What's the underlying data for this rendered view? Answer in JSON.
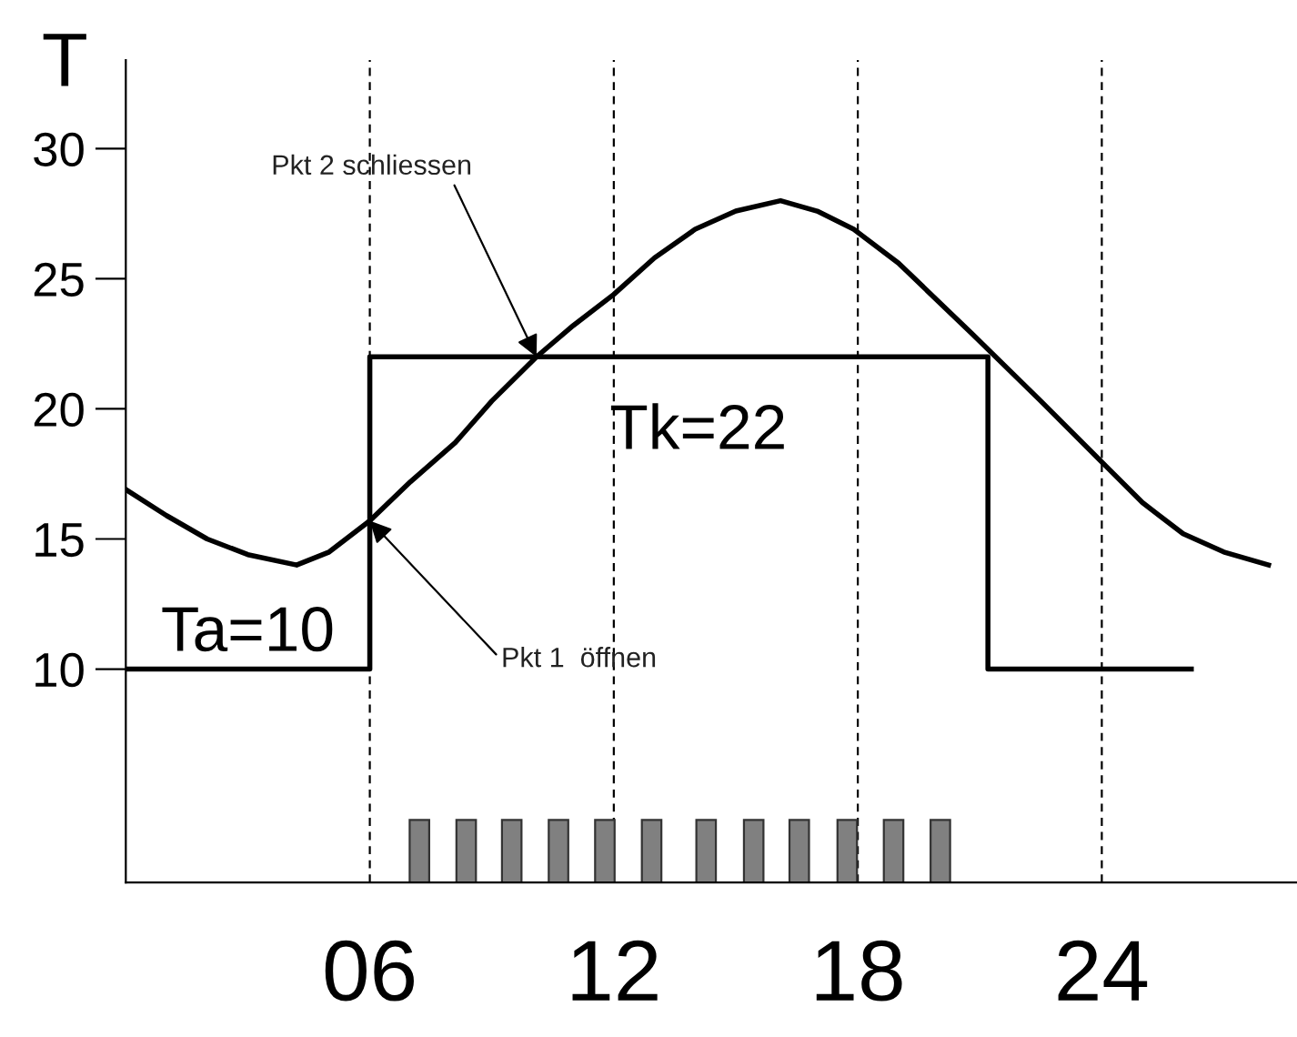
{
  "chart_data": {
    "type": "line",
    "ylabel": "T",
    "xlim": [
      0,
      28.8
    ],
    "ylim": [
      1.8,
      33.4
    ],
    "xticks": [
      {
        "value": 6,
        "label": "06"
      },
      12,
      18,
      24
    ],
    "yticks": [
      10,
      15,
      20,
      25,
      30
    ],
    "grid": false,
    "legend": false,
    "series": [
      {
        "color": "#000000",
        "x": [
          0,
          1,
          2,
          3,
          4.2,
          5,
          6,
          7,
          8.1,
          9,
          10.1,
          11,
          12,
          13,
          14,
          15,
          16.1,
          17,
          17.9,
          19,
          20.8,
          22.5,
          24.1,
          25,
          26,
          27,
          28.1
        ],
        "values": [
          16.9,
          15.9,
          15.0,
          14.4,
          14.0,
          14.5,
          15.7,
          17.2,
          18.7,
          20.3,
          22,
          23.2,
          24.4,
          25.8,
          26.9,
          27.6,
          28.0,
          27.6,
          26.9,
          25.6,
          22.9,
          20.3,
          17.8,
          16.4,
          15.2,
          14.5,
          14.0
        ]
      },
      {
        "type": "step",
        "color": "#000000",
        "x": [
          0,
          6,
          21.2,
          26.2
        ],
        "values": [
          10,
          22,
          10,
          10
        ]
      },
      {
        "type": "bar",
        "color": "#808080",
        "x": [
          7.22,
          8.37,
          9.49,
          10.64,
          11.78,
          12.93,
          14.27,
          15.44,
          16.56,
          17.74,
          18.88,
          20.03
        ],
        "values": [
          2.4,
          2.4,
          2.4,
          2.4,
          2.4,
          2.4,
          2.4,
          2.4,
          2.4,
          2.4,
          2.4,
          2.4
        ],
        "base": [
          1.8,
          1.8,
          1.8,
          1.8,
          1.8,
          1.8,
          1.8,
          1.8,
          1.8,
          1.8,
          1.8,
          1.8
        ]
      }
    ],
    "ref_lines": [
      {
        "axis": "x",
        "value": 6,
        "line_style": "dashed",
        "color": "#000000"
      },
      {
        "axis": "x",
        "value": 12,
        "line_style": "dashed",
        "color": "#000000"
      },
      {
        "axis": "x",
        "value": 18,
        "line_style": "dashed",
        "color": "#000000"
      },
      {
        "axis": "x",
        "value": 24,
        "line_style": "dashed",
        "color": "#000000"
      }
    ],
    "annotations": [
      {
        "text": "Pkt 2 schliessen",
        "x": 10.1,
        "y": 22
      },
      {
        "text": "Pkt 1  öffnen",
        "x": 6,
        "y": 15.7
      },
      {
        "text": "Tk=22",
        "x": 14.7,
        "y": 22
      },
      {
        "text": "Ta=10",
        "x": 3,
        "y": 10
      }
    ]
  }
}
